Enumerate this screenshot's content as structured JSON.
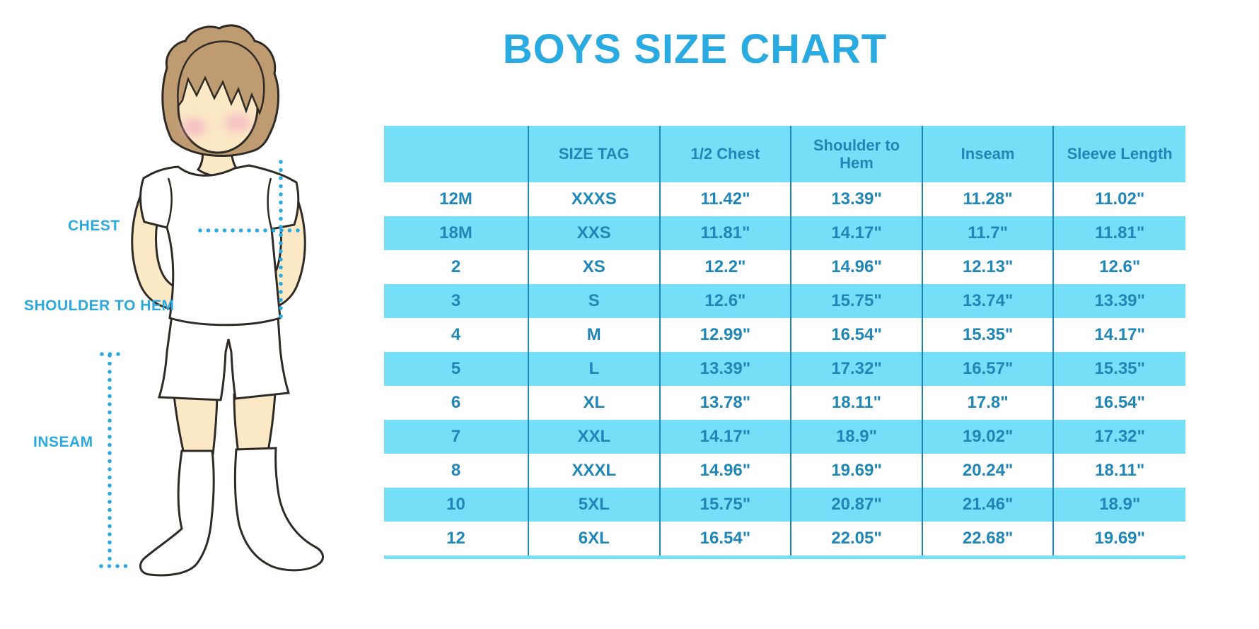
{
  "title": "BOYS SIZE CHART",
  "illustration": {
    "labels": {
      "chest": "CHEST",
      "shoulder_to_hem": "SHOULDER TO HEM",
      "inseam": "INSEAM"
    }
  },
  "colors": {
    "title_blue": "#29ABE2",
    "table_text_blue": "#1E87B8",
    "band_light_blue": "#76DFF8",
    "divider_blue": "#1E86B6",
    "measure_cyan": "#2AA9E0",
    "skin": "#FBE8C5",
    "hair": "#BE9B70",
    "cheek_pink": "#F2A9C4"
  },
  "chart_data": {
    "type": "table",
    "title": "BOYS SIZE CHART",
    "columns": [
      "",
      "SIZE TAG",
      "1/2 Chest",
      "Shoulder to Hem",
      "Inseam",
      "Sleeve Length"
    ],
    "rows": [
      [
        "12M",
        "XXXS",
        "11.42\"",
        "13.39\"",
        "11.28\"",
        "11.02\""
      ],
      [
        "18M",
        "XXS",
        "11.81\"",
        "14.17\"",
        "11.7\"",
        "11.81\""
      ],
      [
        "2",
        "XS",
        "12.2\"",
        "14.96\"",
        "12.13\"",
        "12.6\""
      ],
      [
        "3",
        "S",
        "12.6\"",
        "15.75\"",
        "13.74\"",
        "13.39\""
      ],
      [
        "4",
        "M",
        "12.99\"",
        "16.54\"",
        "15.35\"",
        "14.17\""
      ],
      [
        "5",
        "L",
        "13.39\"",
        "17.32\"",
        "16.57\"",
        "15.35\""
      ],
      [
        "6",
        "XL",
        "13.78\"",
        "18.11\"",
        "17.8\"",
        "16.54\""
      ],
      [
        "7",
        "XXL",
        "14.17\"",
        "18.9\"",
        "19.02\"",
        "17.32\""
      ],
      [
        "8",
        "XXXL",
        "14.96\"",
        "19.69\"",
        "20.24\"",
        "18.11\""
      ],
      [
        "10",
        "5XL",
        "15.75\"",
        "20.87\"",
        "21.46\"",
        "18.9\""
      ],
      [
        "12",
        "6XL",
        "16.54\"",
        "22.05\"",
        "22.68\"",
        "19.69\""
      ]
    ],
    "row_striping": "white / light-blue alternating, header light-blue",
    "units": "inches"
  }
}
